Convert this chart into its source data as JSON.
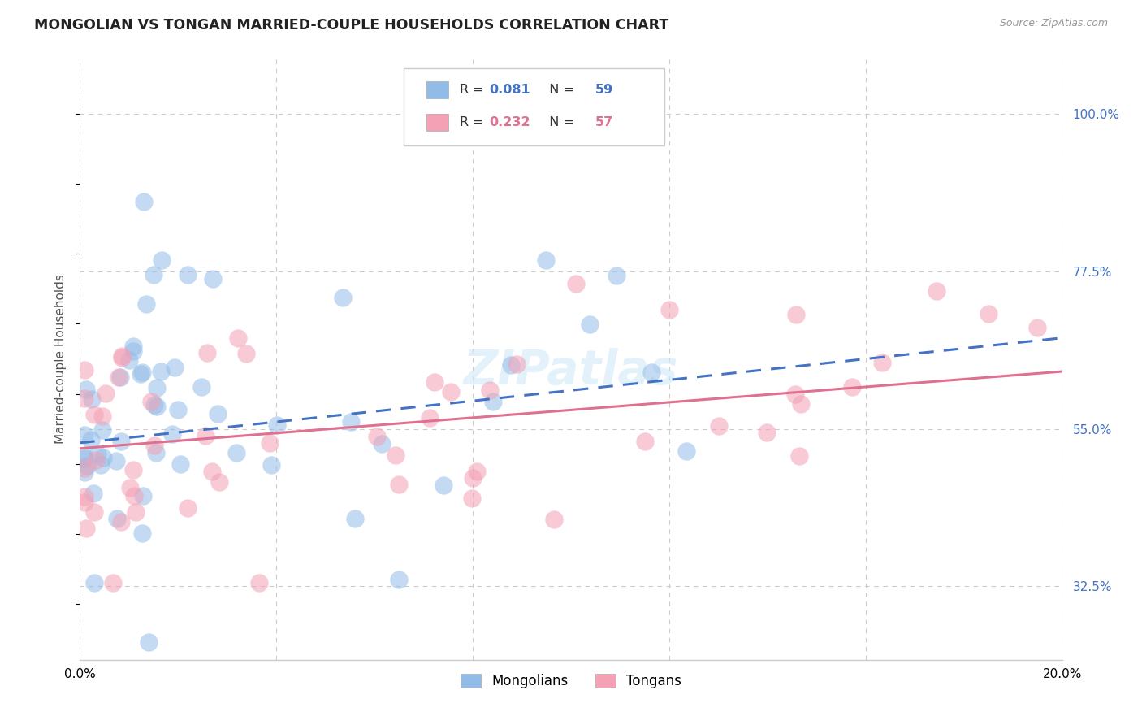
{
  "title": "MONGOLIAN VS TONGAN MARRIED-COUPLE HOUSEHOLDS CORRELATION CHART",
  "source": "Source: ZipAtlas.com",
  "ylabel": "Married-couple Households",
  "ytick_vals": [
    0.325,
    0.55,
    0.775,
    1.0
  ],
  "ytick_labels": [
    "32.5%",
    "55.0%",
    "77.5%",
    "100.0%"
  ],
  "xlim": [
    0.0,
    0.2
  ],
  "ylim": [
    0.22,
    1.08
  ],
  "blue_color": "#92bce8",
  "pink_color": "#f4a0b5",
  "blue_line_color": "#4472c4",
  "pink_line_color": "#e07090",
  "grid_color": "#cccccc",
  "right_tick_color": "#4472c4",
  "watermark": "ZIPatlas",
  "R_blue": 0.081,
  "N_blue": 59,
  "R_pink": 0.232,
  "N_pink": 57,
  "blue_intercept": 0.53,
  "blue_slope": 0.75,
  "pink_intercept": 0.522,
  "pink_slope": 0.55
}
